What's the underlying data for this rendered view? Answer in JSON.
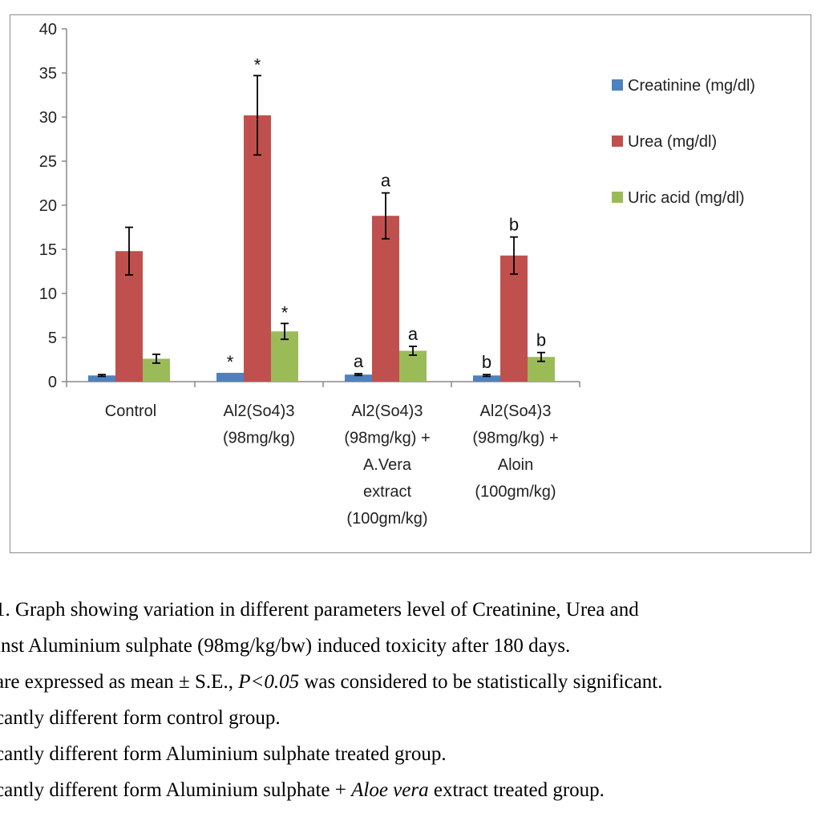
{
  "chart_data": {
    "type": "bar",
    "categories": [
      [
        "Control"
      ],
      [
        "Al2(So4)3",
        "(98mg/kg)"
      ],
      [
        "Al2(So4)3",
        "(98mg/kg) +",
        "A.Vera",
        "extract",
        "(100gm/kg)"
      ],
      [
        "Al2(So4)3",
        "(98mg/kg) +",
        "Aloin",
        "(100gm/kg)"
      ]
    ],
    "series": [
      {
        "name": "Creatinine (mg/dl)",
        "color": "#4f81bd",
        "values": [
          0.7,
          1.0,
          0.8,
          0.7
        ],
        "errors": [
          0.1,
          0.0,
          0.1,
          0.1
        ],
        "marks": [
          "",
          "*",
          "a",
          "b"
        ]
      },
      {
        "name": "Urea (mg/dl)",
        "color": "#c0504d",
        "values": [
          14.8,
          30.2,
          18.8,
          14.3
        ],
        "errors": [
          2.7,
          4.5,
          2.6,
          2.1
        ],
        "marks": [
          "",
          "*",
          "a",
          "b"
        ]
      },
      {
        "name": "Uric acid (mg/dl)",
        "color": "#9bbb59",
        "values": [
          2.6,
          5.7,
          3.5,
          2.8
        ],
        "errors": [
          0.5,
          0.9,
          0.5,
          0.5
        ],
        "marks": [
          "",
          "*",
          "a",
          "b"
        ]
      }
    ],
    "ylim": [
      0,
      40
    ],
    "yticks": [
      0,
      5,
      10,
      15,
      20,
      25,
      30,
      35,
      40
    ],
    "legend": "right",
    "grid": false
  },
  "caption": {
    "line1": "1. Graph showing variation in different parameters level of Creatinine, Urea and",
    "line2": "inst Aluminium  sulphate (98mg/kg/bw) induced toxicity after 180 days.",
    "line3_a": "are expressed as mean ± S.E., ",
    "line3_b": "P<0.05",
    "line3_c": " was considered to be statistically significant.",
    "line4": "cantly different form control group.",
    "line5": "cantly different form Aluminium sulphate treated group.",
    "line6_a": "cantly different form Aluminium  sulphate + ",
    "line6_b": "Aloe vera",
    "line6_c": " extract treated group."
  }
}
